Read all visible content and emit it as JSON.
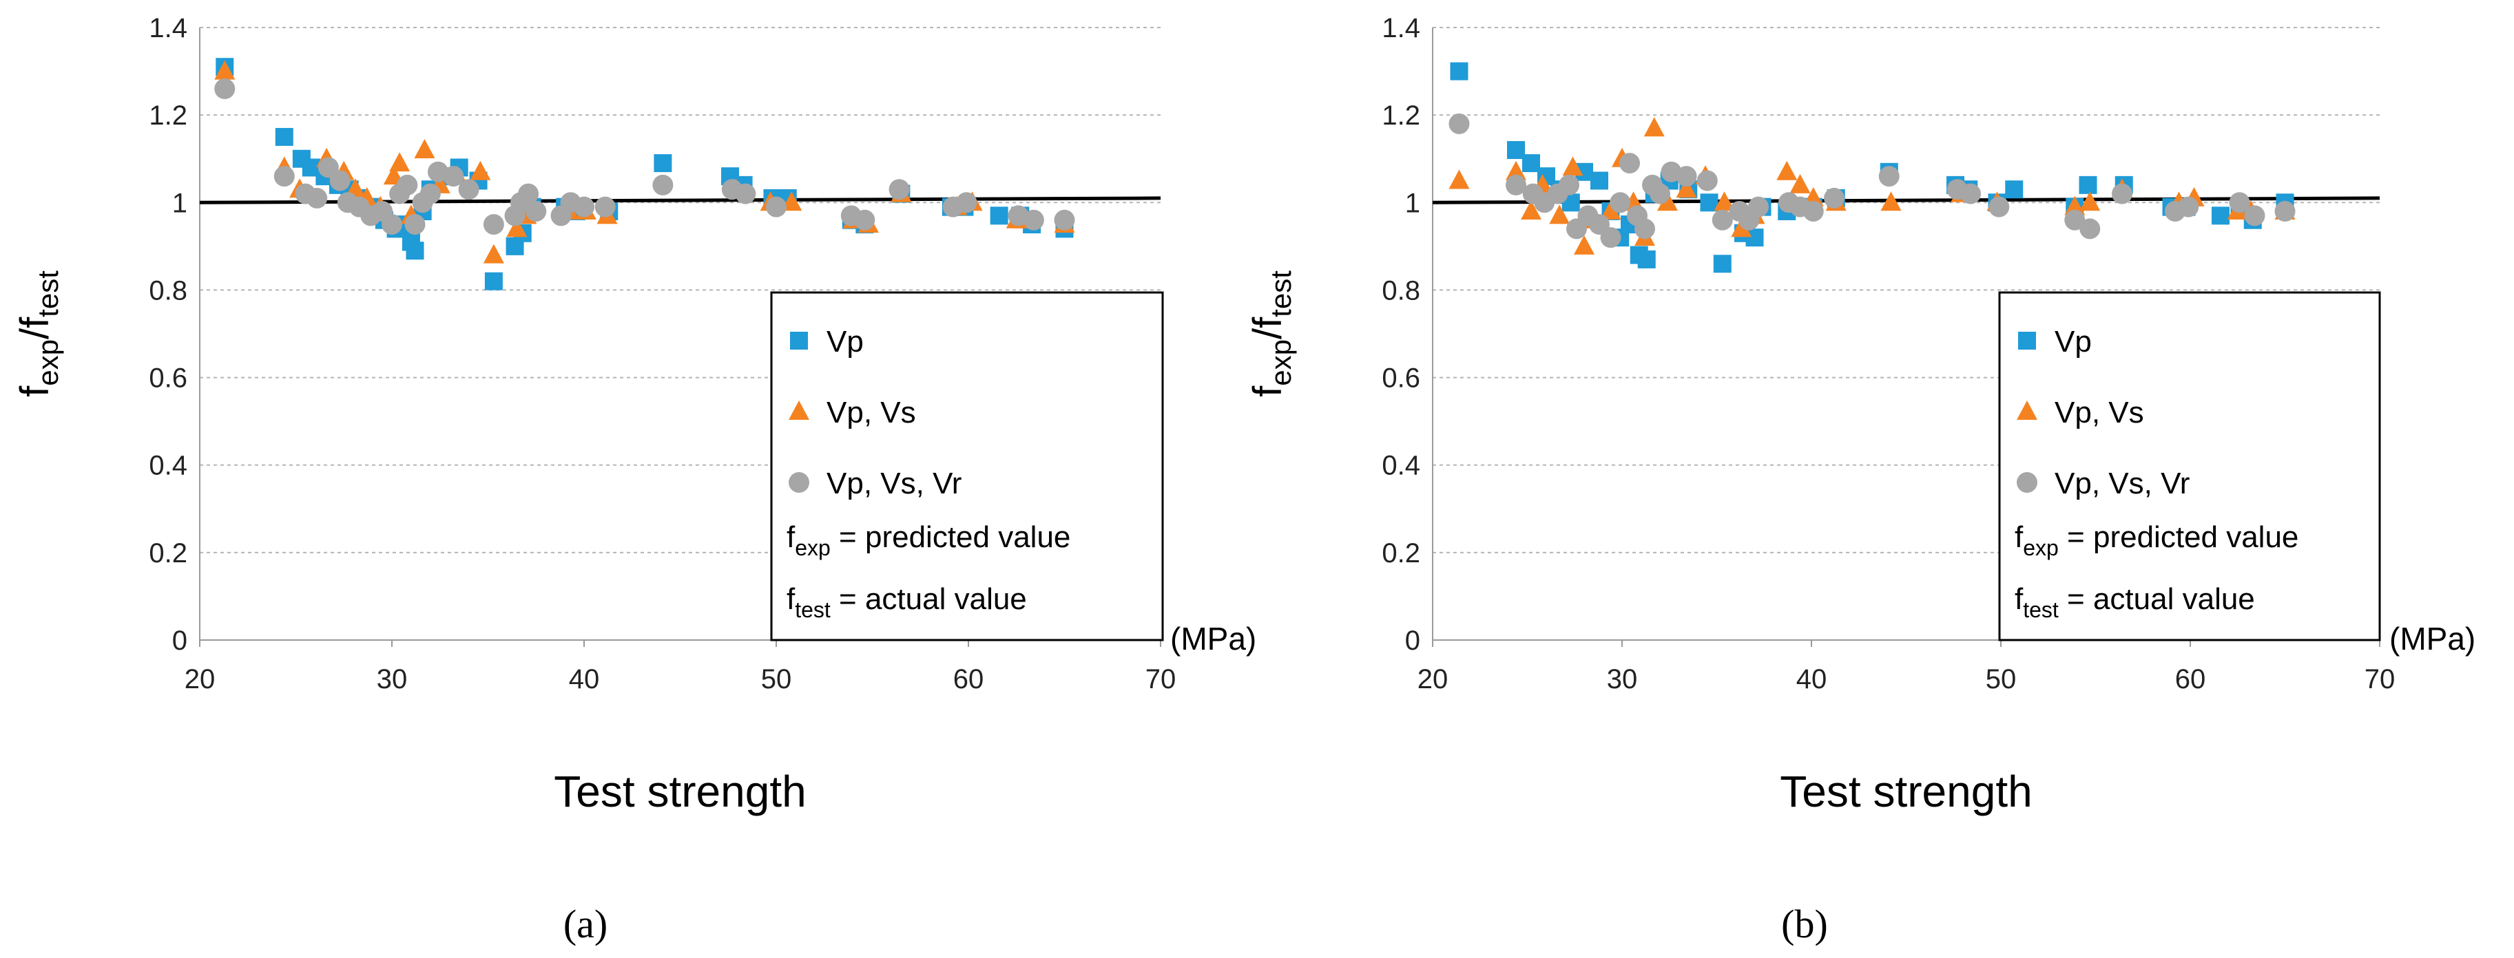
{
  "colors": {
    "vp": "#1f9bd7",
    "vpvs": "#f58220",
    "vpvsvr": "#a6a6a6",
    "grid": "#b5b5b5",
    "refline": "#000000"
  },
  "chart_data": [
    {
      "type": "scatter",
      "panel_label": "(a)",
      "ylabel_main": "f",
      "ylabel_sub1": "exp",
      "ylabel_slash": "/f",
      "ylabel_sub2": "test",
      "xlabel": "Test strength",
      "x_unit": "(MPa)",
      "xlim": [
        20,
        70
      ],
      "ylim": [
        0,
        1.4
      ],
      "x_ticks": [
        "20",
        "30",
        "40",
        "50",
        "60",
        "70"
      ],
      "y_ticks": [
        "0",
        "0.2",
        "0.4",
        "0.6",
        "0.8",
        "1",
        "1.2",
        "1.4"
      ],
      "reference_line": {
        "x": [
          20,
          70
        ],
        "y": [
          1.0,
          1.01
        ]
      },
      "legend": {
        "position": "bottom-right",
        "entries": [
          "Vp",
          "Vp, Vs",
          "Vp, Vs, Vr"
        ],
        "note1_main": "f",
        "note1_sub": "exp",
        "note1_rest": " = predicted value",
        "note2_main": "f",
        "note2_sub": "test",
        "note2_rest": " = actual value"
      },
      "series": [
        {
          "name": "Vp",
          "marker": "square",
          "points": [
            [
              21.3,
              1.31
            ],
            [
              24.4,
              1.15
            ],
            [
              25.3,
              1.1
            ],
            [
              25.8,
              1.08
            ],
            [
              26.5,
              1.06
            ],
            [
              27.2,
              1.04
            ],
            [
              27.8,
              1.03
            ],
            [
              28.3,
              1.01
            ],
            [
              29.0,
              0.99
            ],
            [
              29.6,
              0.96
            ],
            [
              30.2,
              0.94
            ],
            [
              30.6,
              0.95
            ],
            [
              31.0,
              0.91
            ],
            [
              31.2,
              0.89
            ],
            [
              31.6,
              0.98
            ],
            [
              32.0,
              1.03
            ],
            [
              32.6,
              1.06
            ],
            [
              33.5,
              1.08
            ],
            [
              34.5,
              1.05
            ],
            [
              35.3,
              0.82
            ],
            [
              36.4,
              0.9
            ],
            [
              36.8,
              0.93
            ],
            [
              37.3,
              0.99
            ],
            [
              39.0,
              0.99
            ],
            [
              39.6,
              0.98
            ],
            [
              41.3,
              0.98
            ],
            [
              44.1,
              1.09
            ],
            [
              47.6,
              1.06
            ],
            [
              48.3,
              1.04
            ],
            [
              49.8,
              1.01
            ],
            [
              50.6,
              1.01
            ],
            [
              53.9,
              0.96
            ],
            [
              54.6,
              0.95
            ],
            [
              56.5,
              1.02
            ],
            [
              59.1,
              0.99
            ],
            [
              59.8,
              0.99
            ],
            [
              61.6,
              0.97
            ],
            [
              62.7,
              0.97
            ],
            [
              63.3,
              0.95
            ],
            [
              65.0,
              0.94
            ]
          ]
        },
        {
          "name": "Vp, Vs",
          "marker": "triangle",
          "points": [
            [
              21.3,
              1.3
            ],
            [
              24.4,
              1.08
            ],
            [
              25.2,
              1.03
            ],
            [
              26.6,
              1.1
            ],
            [
              27.5,
              1.07
            ],
            [
              28.1,
              1.03
            ],
            [
              28.7,
              1.01
            ],
            [
              29.4,
              0.99
            ],
            [
              30.1,
              1.06
            ],
            [
              30.4,
              1.09
            ],
            [
              31.0,
              0.97
            ],
            [
              31.7,
              1.12
            ],
            [
              32.5,
              1.04
            ],
            [
              33.4,
              1.06
            ],
            [
              34.6,
              1.07
            ],
            [
              35.3,
              0.88
            ],
            [
              36.5,
              0.94
            ],
            [
              37.0,
              0.97
            ],
            [
              39.2,
              0.98
            ],
            [
              40.1,
              0.98
            ],
            [
              41.2,
              0.97
            ],
            [
              47.9,
              1.03
            ],
            [
              49.7,
              1.0
            ],
            [
              50.8,
              1.0
            ],
            [
              54.0,
              0.96
            ],
            [
              54.8,
              0.95
            ],
            [
              56.5,
              1.02
            ],
            [
              59.4,
              0.99
            ],
            [
              60.2,
              1.0
            ],
            [
              62.5,
              0.96
            ],
            [
              63.0,
              0.96
            ],
            [
              65.0,
              0.95
            ]
          ]
        },
        {
          "name": "Vp, Vs, Vr",
          "marker": "circle",
          "points": [
            [
              21.3,
              1.26
            ],
            [
              24.4,
              1.06
            ],
            [
              25.5,
              1.02
            ],
            [
              26.1,
              1.01
            ],
            [
              26.7,
              1.08
            ],
            [
              27.3,
              1.05
            ],
            [
              27.7,
              1.0
            ],
            [
              28.3,
              0.99
            ],
            [
              28.9,
              0.97
            ],
            [
              29.5,
              0.98
            ],
            [
              30.0,
              0.95
            ],
            [
              30.4,
              1.02
            ],
            [
              30.8,
              1.04
            ],
            [
              31.2,
              0.95
            ],
            [
              31.6,
              1.0
            ],
            [
              32.0,
              1.02
            ],
            [
              32.4,
              1.07
            ],
            [
              33.2,
              1.06
            ],
            [
              34.0,
              1.03
            ],
            [
              35.3,
              0.95
            ],
            [
              36.4,
              0.97
            ],
            [
              36.7,
              1.0
            ],
            [
              37.1,
              1.02
            ],
            [
              37.5,
              0.98
            ],
            [
              38.8,
              0.97
            ],
            [
              39.3,
              1.0
            ],
            [
              40.0,
              0.99
            ],
            [
              41.1,
              0.99
            ],
            [
              44.1,
              1.04
            ],
            [
              47.7,
              1.03
            ],
            [
              48.4,
              1.02
            ],
            [
              50.0,
              0.99
            ],
            [
              53.9,
              0.97
            ],
            [
              54.6,
              0.96
            ],
            [
              56.4,
              1.03
            ],
            [
              59.2,
              0.99
            ],
            [
              59.9,
              1.0
            ],
            [
              62.6,
              0.97
            ],
            [
              63.4,
              0.96
            ],
            [
              65.0,
              0.96
            ]
          ]
        }
      ]
    },
    {
      "type": "scatter",
      "panel_label": "(b)",
      "ylabel_main": "f",
      "ylabel_sub1": "exp",
      "ylabel_slash": "/f",
      "ylabel_sub2": "test",
      "xlabel": "Test strength",
      "x_unit": "(MPa)",
      "xlim": [
        20,
        70
      ],
      "ylim": [
        0,
        1.4
      ],
      "x_ticks": [
        "20",
        "30",
        "40",
        "50",
        "60",
        "70"
      ],
      "y_ticks": [
        "0",
        "0.2",
        "0.4",
        "0.6",
        "0.8",
        "1",
        "1.2",
        "1.4"
      ],
      "reference_line": {
        "x": [
          20,
          70
        ],
        "y": [
          1.0,
          1.01
        ]
      },
      "legend": {
        "position": "bottom-right",
        "entries": [
          "Vp",
          "Vp, Vs",
          "Vp, Vs, Vr"
        ],
        "note1_main": "f",
        "note1_sub": "exp",
        "note1_rest": " = predicted value",
        "note2_main": "f",
        "note2_sub": "test",
        "note2_rest": " = actual value"
      },
      "series": [
        {
          "name": "Vp",
          "marker": "square",
          "points": [
            [
              21.4,
              1.3
            ],
            [
              24.4,
              1.12
            ],
            [
              25.2,
              1.09
            ],
            [
              26.0,
              1.06
            ],
            [
              26.7,
              1.03
            ],
            [
              27.3,
              1.0
            ],
            [
              28.0,
              1.07
            ],
            [
              28.8,
              1.05
            ],
            [
              29.4,
              0.98
            ],
            [
              29.9,
              0.92
            ],
            [
              30.4,
              0.95
            ],
            [
              30.9,
              0.88
            ],
            [
              31.3,
              0.87
            ],
            [
              31.7,
              1.02
            ],
            [
              32.5,
              1.05
            ],
            [
              33.5,
              1.03
            ],
            [
              34.6,
              1.0
            ],
            [
              35.3,
              0.86
            ],
            [
              36.4,
              0.93
            ],
            [
              37.0,
              0.92
            ],
            [
              37.4,
              0.99
            ],
            [
              38.7,
              0.98
            ],
            [
              39.6,
              0.99
            ],
            [
              40.1,
              0.99
            ],
            [
              41.3,
              1.01
            ],
            [
              44.1,
              1.07
            ],
            [
              47.6,
              1.04
            ],
            [
              48.3,
              1.03
            ],
            [
              49.8,
              1.0
            ],
            [
              50.7,
              1.03
            ],
            [
              53.9,
              0.99
            ],
            [
              54.6,
              1.04
            ],
            [
              56.5,
              1.04
            ],
            [
              59.0,
              0.99
            ],
            [
              59.8,
              0.99
            ],
            [
              61.6,
              0.97
            ],
            [
              62.6,
              0.99
            ],
            [
              63.3,
              0.96
            ],
            [
              65.0,
              1.0
            ]
          ]
        },
        {
          "name": "Vp, Vs",
          "marker": "triangle",
          "points": [
            [
              21.4,
              1.05
            ],
            [
              24.4,
              1.07
            ],
            [
              25.2,
              0.98
            ],
            [
              25.8,
              1.04
            ],
            [
              26.7,
              0.97
            ],
            [
              27.4,
              1.08
            ],
            [
              28.0,
              0.9
            ],
            [
              28.6,
              0.96
            ],
            [
              29.4,
              0.98
            ],
            [
              30.0,
              1.1
            ],
            [
              30.6,
              1.0
            ],
            [
              31.2,
              0.92
            ],
            [
              31.7,
              1.17
            ],
            [
              32.4,
              1.0
            ],
            [
              33.4,
              1.03
            ],
            [
              34.4,
              1.06
            ],
            [
              35.4,
              1.0
            ],
            [
              36.3,
              0.94
            ],
            [
              37.0,
              0.97
            ],
            [
              38.7,
              1.07
            ],
            [
              39.4,
              1.04
            ],
            [
              40.1,
              1.01
            ],
            [
              41.3,
              1.0
            ],
            [
              44.2,
              1.0
            ],
            [
              47.9,
              1.02
            ],
            [
              49.8,
              1.0
            ],
            [
              53.9,
              0.99
            ],
            [
              54.7,
              1.0
            ],
            [
              56.4,
              1.03
            ],
            [
              59.4,
              1.0
            ],
            [
              60.2,
              1.01
            ],
            [
              62.5,
              0.98
            ],
            [
              63.2,
              0.98
            ],
            [
              65.0,
              0.98
            ]
          ]
        },
        {
          "name": "Vp, Vs, Vr",
          "marker": "circle",
          "points": [
            [
              21.4,
              1.18
            ],
            [
              24.4,
              1.04
            ],
            [
              25.3,
              1.02
            ],
            [
              25.9,
              1.0
            ],
            [
              26.6,
              1.02
            ],
            [
              27.2,
              1.04
            ],
            [
              27.6,
              0.94
            ],
            [
              28.2,
              0.97
            ],
            [
              28.8,
              0.95
            ],
            [
              29.4,
              0.92
            ],
            [
              29.9,
              1.0
            ],
            [
              30.4,
              1.09
            ],
            [
              30.8,
              0.97
            ],
            [
              31.2,
              0.94
            ],
            [
              31.6,
              1.04
            ],
            [
              32.0,
              1.02
            ],
            [
              32.6,
              1.07
            ],
            [
              33.4,
              1.06
            ],
            [
              34.5,
              1.05
            ],
            [
              35.3,
              0.96
            ],
            [
              36.2,
              0.98
            ],
            [
              36.7,
              0.96
            ],
            [
              37.2,
              0.99
            ],
            [
              38.8,
              1.0
            ],
            [
              39.4,
              0.99
            ],
            [
              40.1,
              0.98
            ],
            [
              41.2,
              1.01
            ],
            [
              44.1,
              1.06
            ],
            [
              47.7,
              1.03
            ],
            [
              48.4,
              1.02
            ],
            [
              49.9,
              0.99
            ],
            [
              53.9,
              0.96
            ],
            [
              54.7,
              0.94
            ],
            [
              56.4,
              1.02
            ],
            [
              59.2,
              0.98
            ],
            [
              59.9,
              0.99
            ],
            [
              62.6,
              1.0
            ],
            [
              63.4,
              0.97
            ],
            [
              65.0,
              0.98
            ]
          ]
        }
      ]
    }
  ]
}
